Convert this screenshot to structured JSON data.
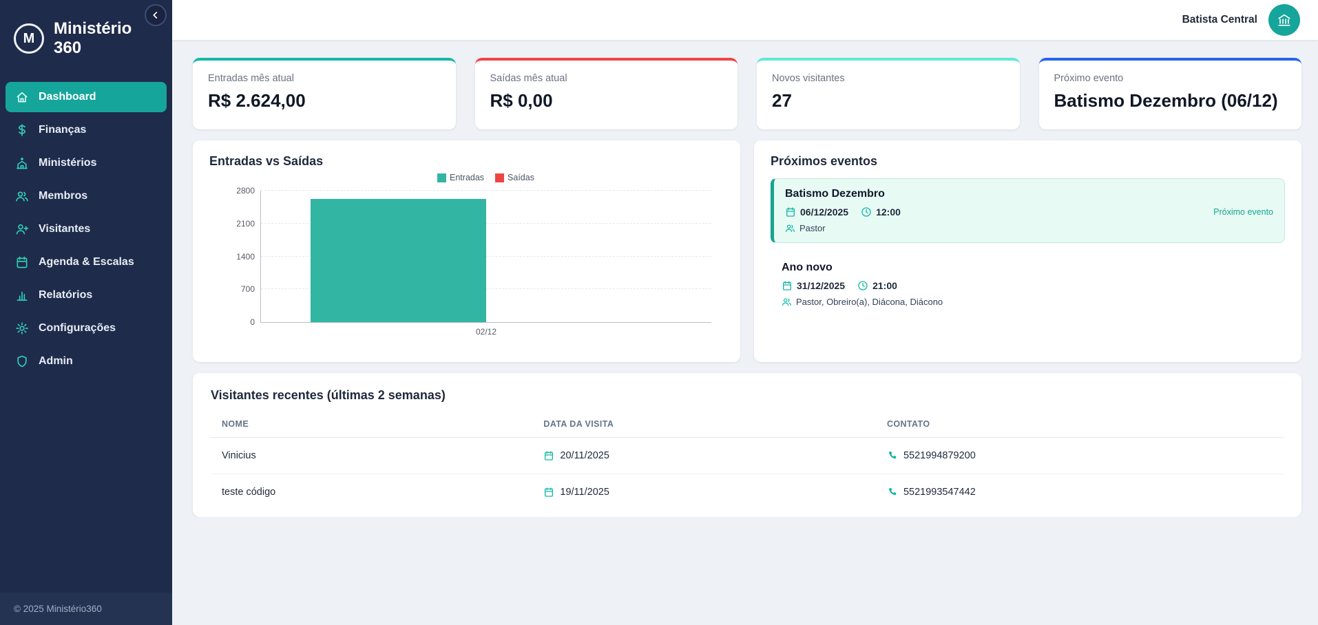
{
  "theme": {
    "sidebar_bg": "#1f2b4b",
    "accent_teal": "#14b8a6",
    "accent_red": "#ef4444",
    "accent_light_teal": "#5eead4",
    "accent_blue": "#2563eb"
  },
  "app": {
    "logo_letter": "M",
    "title_line1": "Ministério",
    "title_line2": "360",
    "footer": "© 2025 Ministério360"
  },
  "topbar": {
    "org_name": "Batista Central"
  },
  "sidebar": {
    "items": [
      {
        "label": "Dashboard",
        "active": true
      },
      {
        "label": "Finanças",
        "active": false
      },
      {
        "label": "Ministérios",
        "active": false
      },
      {
        "label": "Membros",
        "active": false
      },
      {
        "label": "Visitantes",
        "active": false
      },
      {
        "label": "Agenda & Escalas",
        "active": false
      },
      {
        "label": "Relatórios",
        "active": false
      },
      {
        "label": "Configurações",
        "active": false
      },
      {
        "label": "Admin",
        "active": false
      }
    ]
  },
  "stats": [
    {
      "label": "Entradas mês atual",
      "value": "R$ 2.624,00",
      "accent": "#14b8a6"
    },
    {
      "label": "Saídas mês atual",
      "value": "R$ 0,00",
      "accent": "#ef4444"
    },
    {
      "label": "Novos visitantes",
      "value": "27",
      "accent": "#5eead4"
    },
    {
      "label": "Próximo evento",
      "value": "Batismo Dezembro (06/12)",
      "accent": "#2563eb"
    }
  ],
  "chart_data": {
    "type": "bar",
    "title": "Entradas vs Saídas",
    "categories": [
      "02/12"
    ],
    "series": [
      {
        "name": "Entradas",
        "color": "#33b5a4",
        "values": [
          2624
        ]
      },
      {
        "name": "Saídas",
        "color": "#ef4444",
        "values": [
          0
        ]
      }
    ],
    "ylim": [
      0,
      2800
    ],
    "yticks": [
      0,
      700,
      1400,
      2100,
      2800
    ],
    "grid": "dashed-horizontal",
    "legend_position": "top-center"
  },
  "events": {
    "title": "Próximos eventos",
    "items": [
      {
        "name": "Batismo Dezembro",
        "date": "06/12/2025",
        "time": "12:00",
        "roles": "Pastor",
        "badge": "Próximo evento",
        "highlight": true
      },
      {
        "name": "Ano novo",
        "date": "31/12/2025",
        "time": "21:00",
        "roles": "Pastor, Obreiro(a), Diácona, Diácono",
        "badge": "",
        "highlight": false
      }
    ]
  },
  "visitors": {
    "title": "Visitantes recentes (últimas 2 semanas)",
    "columns": [
      "NOME",
      "DATA DA VISITA",
      "CONTATO"
    ],
    "rows": [
      {
        "name": "Vinicius",
        "date": "20/11/2025",
        "contact": "5521994879200"
      },
      {
        "name": "teste código",
        "date": "19/11/2025",
        "contact": "5521993547442"
      }
    ]
  }
}
